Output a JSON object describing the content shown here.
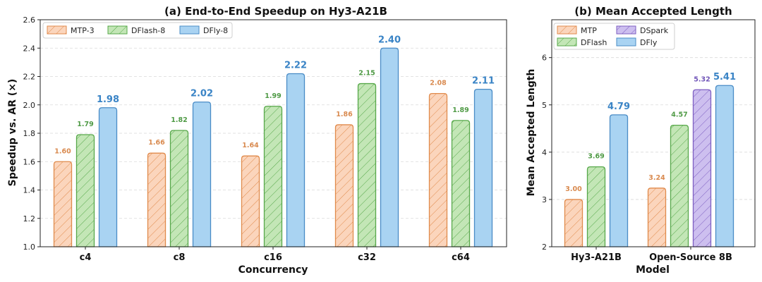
{
  "colors": {
    "mtp": {
      "fill": "#fbd5bc",
      "stroke": "#e08a4b",
      "label": "#d98a4f"
    },
    "dflash": {
      "fill": "#c3e6b6",
      "stroke": "#57a84a",
      "label": "#4f9a45"
    },
    "dfly": {
      "fill": "#a9d3f2",
      "stroke": "#4a8cc6",
      "label": "#3a84c6"
    },
    "dspark": {
      "fill": "#cdbfef",
      "stroke": "#7e5fc2",
      "label": "#7055b8"
    }
  },
  "chart_data": [
    {
      "type": "bar",
      "title": "(a) End-to-End Speedup on Hy3-A21B",
      "xlabel": "Concurrency",
      "ylabel": "Speedup vs. AR (×)",
      "categories": [
        "c4",
        "c8",
        "c16",
        "c32",
        "c64"
      ],
      "ylim": [
        1.0,
        2.6
      ],
      "yticks": [
        "1.0",
        "1.2",
        "1.4",
        "1.6",
        "1.8",
        "2.0",
        "2.2",
        "2.4",
        "2.6"
      ],
      "grid": true,
      "legend_position": "top-left",
      "series": [
        {
          "name": "MTP-3",
          "style": "mtp",
          "hatched": true,
          "values": [
            1.6,
            1.66,
            1.64,
            1.86,
            2.08
          ],
          "labels": [
            "1.60",
            "1.66",
            "1.64",
            "1.86",
            "2.08"
          ]
        },
        {
          "name": "DFlash-8",
          "style": "dflash",
          "hatched": true,
          "values": [
            1.79,
            1.82,
            1.99,
            2.15,
            1.89
          ],
          "labels": [
            "1.79",
            "1.82",
            "1.99",
            "2.15",
            "1.89"
          ]
        },
        {
          "name": "DFly-8",
          "style": "dfly",
          "hatched": false,
          "values": [
            1.98,
            2.02,
            2.22,
            2.4,
            2.11
          ],
          "labels": [
            "1.98",
            "2.02",
            "2.22",
            "2.40",
            "2.11"
          ]
        }
      ]
    },
    {
      "type": "bar",
      "title": "(b) Mean Accepted Length",
      "xlabel": "Model",
      "ylabel": "Mean Accepted Length",
      "categories": [
        "Hy3-A21B",
        "Open-Source 8B"
      ],
      "ylim": [
        2,
        6.8
      ],
      "yticks": [
        "2",
        "3",
        "4",
        "5",
        "6"
      ],
      "grid": true,
      "legend_position": "top-left",
      "legend_order": [
        "MTP",
        "DFlash",
        "DSpark",
        "DFly"
      ],
      "series": [
        {
          "name": "MTP",
          "style": "mtp",
          "hatched": true,
          "values": [
            3.0,
            3.24
          ],
          "labels": [
            "3.00",
            "3.24"
          ]
        },
        {
          "name": "DFlash",
          "style": "dflash",
          "hatched": true,
          "values": [
            3.69,
            4.57
          ],
          "labels": [
            "3.69",
            "4.57"
          ]
        },
        {
          "name": "DSpark",
          "style": "dspark",
          "hatched": true,
          "values": [
            null,
            5.32
          ],
          "labels": [
            "",
            "5.32"
          ]
        },
        {
          "name": "DFly",
          "style": "dfly",
          "hatched": false,
          "values": [
            4.79,
            5.41
          ],
          "labels": [
            "4.79",
            "5.41"
          ]
        }
      ]
    }
  ]
}
